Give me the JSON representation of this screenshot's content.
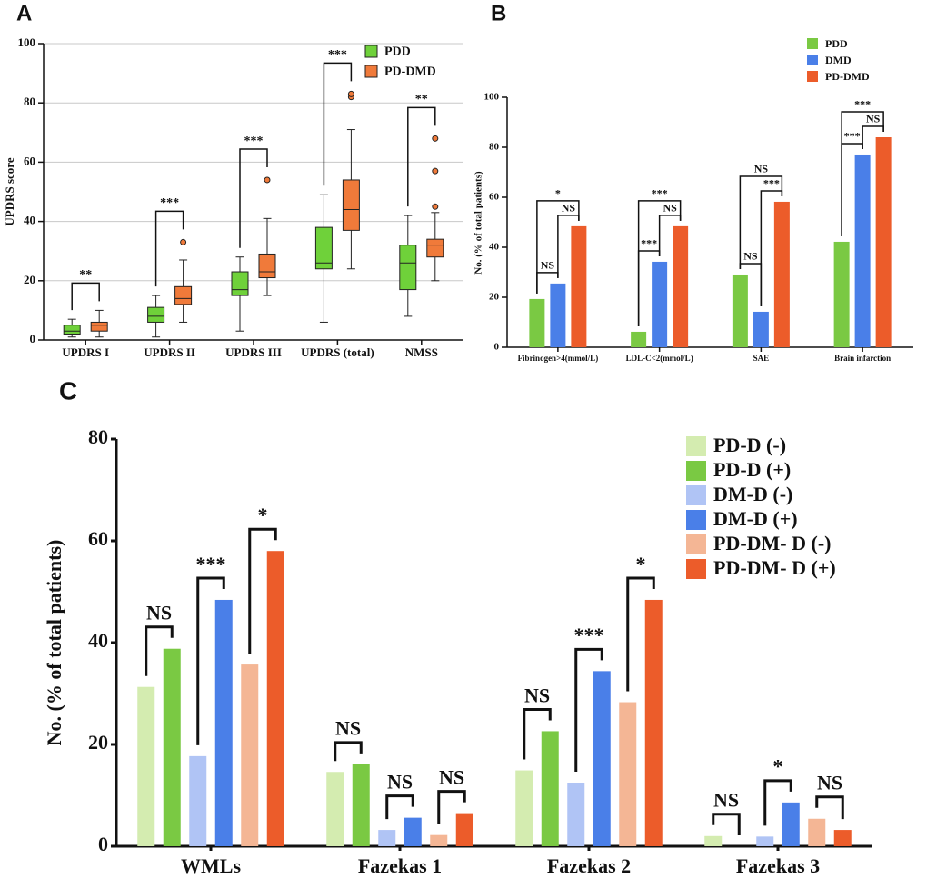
{
  "chart_data": [
    {
      "panel": "A",
      "type": "box",
      "ylabel": "UPDRS score",
      "categories": [
        "UPDRS I",
        "UPDRS II",
        "UPDRS III",
        "UPDRS (total)",
        "NMSS"
      ],
      "series": [
        {
          "name": "PDD",
          "color": "#6fd13a",
          "low": [
            1,
            1,
            3,
            6,
            8
          ],
          "q1": [
            2,
            6,
            15,
            24,
            17
          ],
          "median": [
            3,
            8,
            17,
            26,
            26
          ],
          "q3": [
            5,
            11,
            23,
            38,
            32
          ],
          "high": [
            7,
            15,
            28,
            49,
            42
          ],
          "outliers": [
            [],
            [],
            [],
            [],
            []
          ]
        },
        {
          "name": "PD-DMD",
          "color": "#f07a3a",
          "low": [
            1,
            6,
            15,
            24,
            20
          ],
          "q1": [
            3,
            12,
            21,
            37,
            28
          ],
          "median": [
            5,
            14,
            23,
            44,
            32
          ],
          "q3": [
            6,
            18,
            29,
            54,
            34
          ],
          "high": [
            10,
            27,
            41,
            71,
            43
          ],
          "outliers": [
            [],
            [
              33
            ],
            [
              54
            ],
            [
              82,
              83
            ],
            [
              45,
              57,
              68
            ]
          ]
        }
      ],
      "significance": [
        [
          "**"
        ],
        [
          "***"
        ],
        [
          "***"
        ],
        [
          "***"
        ],
        [
          "**"
        ]
      ],
      "ylim": [
        0,
        100
      ],
      "yticks": [
        0,
        20,
        40,
        60,
        80,
        100
      ],
      "grid": true,
      "legend": "upper right"
    },
    {
      "panel": "B",
      "type": "bar",
      "ylabel": "No. (% of total patients)",
      "categories": [
        "Fibrinogen>4(mmol/L)",
        "LDL-C<2(mmol/L)",
        "SAE",
        "Brain infarction"
      ],
      "series": [
        {
          "name": "PDD",
          "color": "#7ac943",
          "values": [
            19.3,
            6.2,
            29.1,
            42.2
          ]
        },
        {
          "name": "DMD",
          "color": "#4a7fe8",
          "values": [
            25.5,
            34.2,
            14.2,
            77.1
          ]
        },
        {
          "name": "PD-DMD",
          "color": "#ec5c2a",
          "values": [
            48.4,
            48.4,
            58.2,
            84
          ]
        }
      ],
      "significance": [
        [
          "NS",
          "NS",
          "*"
        ],
        [
          "***",
          "NS",
          "***"
        ],
        [
          "NS",
          "***",
          "NS"
        ],
        [
          "***",
          "NS",
          "***"
        ]
      ],
      "ylim": [
        0,
        100
      ],
      "yticks": [
        0,
        20,
        40,
        60,
        80,
        100
      ],
      "grid": false,
      "legend": "upper right"
    },
    {
      "panel": "C",
      "type": "bar",
      "ylabel": "No. (% of total patients)",
      "categories": [
        "WMLs",
        "Fazekas 1",
        "Fazekas 2",
        "Fazekas 3"
      ],
      "series": [
        {
          "name": "PD-D (-)",
          "color": "#d4ecb0",
          "values": [
            31.3,
            14.6,
            14.9,
            2.0
          ]
        },
        {
          "name": "PD-D (+)",
          "color": "#7ac943",
          "values": [
            38.8,
            16.1,
            22.6,
            0
          ]
        },
        {
          "name": "DM-D (-)",
          "color": "#b0c4f5",
          "values": [
            17.7,
            3.2,
            12.5,
            1.9
          ]
        },
        {
          "name": "DM-D (+)",
          "color": "#4a7fe8",
          "values": [
            48.4,
            5.6,
            34.4,
            8.6
          ]
        },
        {
          "name": "PD-DM- D (-)",
          "color": "#f4b695",
          "values": [
            35.7,
            2.2,
            28.3,
            5.4
          ]
        },
        {
          "name": "PD-DM- D (+)",
          "color": "#ec5c2a",
          "values": [
            58,
            6.5,
            48.4,
            3.2
          ]
        }
      ],
      "significance": [
        [
          "NS",
          "***",
          "*"
        ],
        [
          "NS",
          "NS",
          "NS"
        ],
        [
          "NS",
          "***",
          "*"
        ],
        [
          "NS",
          "*",
          "NS"
        ]
      ],
      "ylim": [
        0,
        80
      ],
      "yticks": [
        0,
        20,
        40,
        60,
        80
      ],
      "grid": false,
      "legend": "upper right"
    }
  ]
}
